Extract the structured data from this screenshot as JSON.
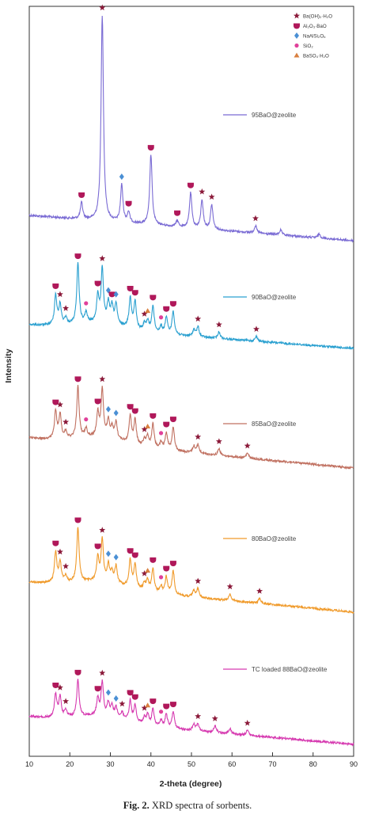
{
  "chart_data": {
    "type": "line",
    "title": "",
    "xlabel": "2-theta (degree)",
    "ylabel": "Intensity",
    "xlim": [
      10,
      90
    ],
    "xticks": [
      10,
      20,
      30,
      40,
      50,
      60,
      70,
      80,
      90
    ],
    "yticks_shown": false,
    "grid": false,
    "legend_position": "top-right",
    "legend": [
      {
        "label": "Ba(OH)₂·H₂O",
        "marker": "star",
        "color": "#8b1a3a"
      },
      {
        "label": "Al₂O₃·BaO",
        "marker": "shield",
        "color": "#b0185a"
      },
      {
        "label": "NaAlSi₂O₆",
        "marker": "diamond",
        "color": "#4a8fd4"
      },
      {
        "label": "SiO₂",
        "marker": "dot",
        "color": "#e0409a"
      },
      {
        "label": "BaSO₄·H₂O",
        "marker": "triangle",
        "color": "#d98040"
      }
    ],
    "series": [
      {
        "name": "95BaO@zeolite",
        "color": "#7a6bd4",
        "peaks": [
          [
            22.9,
            0.04
          ],
          [
            28.0,
            0.5
          ],
          [
            32.8,
            0.09
          ],
          [
            34.5,
            0.025
          ],
          [
            40.0,
            0.17
          ],
          [
            46.5,
            0.015
          ],
          [
            49.8,
            0.085
          ],
          [
            52.6,
            0.07
          ],
          [
            55.0,
            0.06
          ],
          [
            65.8,
            0.018
          ],
          [
            72.0,
            0.012
          ],
          [
            81.5,
            0.01
          ]
        ],
        "markers": [
          {
            "x": 28.0,
            "type": "star"
          },
          {
            "x": 22.9,
            "type": "shield"
          },
          {
            "x": 32.8,
            "type": "diamond"
          },
          {
            "x": 34.5,
            "type": "shield"
          },
          {
            "x": 40.0,
            "type": "shield"
          },
          {
            "x": 46.5,
            "type": "shield"
          },
          {
            "x": 49.8,
            "type": "shield"
          },
          {
            "x": 52.6,
            "type": "star"
          },
          {
            "x": 55.0,
            "type": "star"
          },
          {
            "x": 65.8,
            "type": "star"
          }
        ]
      },
      {
        "name": "90BaO@zeolite",
        "color": "#2aa0d0",
        "peaks": [
          [
            16.5,
            0.09
          ],
          [
            17.6,
            0.06
          ],
          [
            19.0,
            0.02
          ],
          [
            22.0,
            0.18
          ],
          [
            24.0,
            0.03
          ],
          [
            26.9,
            0.08
          ],
          [
            28.0,
            0.16
          ],
          [
            29.5,
            0.06
          ],
          [
            30.4,
            0.05
          ],
          [
            31.4,
            0.06
          ],
          [
            34.9,
            0.09
          ],
          [
            36.1,
            0.08
          ],
          [
            38.4,
            0.02
          ],
          [
            39.2,
            0.03
          ],
          [
            40.5,
            0.08
          ],
          [
            42.5,
            0.02
          ],
          [
            43.8,
            0.05
          ],
          [
            45.5,
            0.07
          ],
          [
            50.6,
            0.02
          ],
          [
            51.6,
            0.03
          ],
          [
            56.8,
            0.02
          ],
          [
            66.0,
            0.015
          ]
        ],
        "markers": [
          {
            "x": 16.5,
            "type": "shield"
          },
          {
            "x": 17.6,
            "type": "star"
          },
          {
            "x": 19.0,
            "type": "star"
          },
          {
            "x": 22.0,
            "type": "shield"
          },
          {
            "x": 24.0,
            "type": "dot"
          },
          {
            "x": 26.9,
            "type": "shield"
          },
          {
            "x": 28.0,
            "type": "star"
          },
          {
            "x": 29.5,
            "type": "diamond"
          },
          {
            "x": 30.4,
            "type": "shield"
          },
          {
            "x": 31.4,
            "type": "diamond"
          },
          {
            "x": 34.9,
            "type": "shield"
          },
          {
            "x": 36.1,
            "type": "shield"
          },
          {
            "x": 38.4,
            "type": "star"
          },
          {
            "x": 39.2,
            "type": "triangle"
          },
          {
            "x": 40.5,
            "type": "shield"
          },
          {
            "x": 42.5,
            "type": "dot"
          },
          {
            "x": 43.8,
            "type": "shield"
          },
          {
            "x": 45.5,
            "type": "shield"
          },
          {
            "x": 51.6,
            "type": "star"
          },
          {
            "x": 56.8,
            "type": "star"
          },
          {
            "x": 66.0,
            "type": "star"
          }
        ]
      },
      {
        "name": "85BaO@zeolite",
        "color": "#c07060",
        "peaks": [
          [
            16.5,
            0.08
          ],
          [
            17.6,
            0.07
          ],
          [
            19.0,
            0.02
          ],
          [
            22.0,
            0.15
          ],
          [
            24.0,
            0.025
          ],
          [
            26.9,
            0.07
          ],
          [
            28.0,
            0.14
          ],
          [
            29.5,
            0.05
          ],
          [
            30.4,
            0.03
          ],
          [
            31.4,
            0.05
          ],
          [
            34.9,
            0.08
          ],
          [
            36.1,
            0.07
          ],
          [
            38.4,
            0.02
          ],
          [
            39.2,
            0.03
          ],
          [
            40.5,
            0.07
          ],
          [
            42.5,
            0.02
          ],
          [
            43.8,
            0.05
          ],
          [
            45.5,
            0.07
          ],
          [
            50.6,
            0.02
          ],
          [
            51.6,
            0.025
          ],
          [
            56.8,
            0.02
          ],
          [
            63.8,
            0.015
          ]
        ],
        "markers": [
          {
            "x": 16.5,
            "type": "shield"
          },
          {
            "x": 17.6,
            "type": "star"
          },
          {
            "x": 19.0,
            "type": "star"
          },
          {
            "x": 22.0,
            "type": "shield"
          },
          {
            "x": 24.0,
            "type": "dot"
          },
          {
            "x": 26.9,
            "type": "shield"
          },
          {
            "x": 28.0,
            "type": "star"
          },
          {
            "x": 29.5,
            "type": "diamond"
          },
          {
            "x": 31.4,
            "type": "diamond"
          },
          {
            "x": 34.9,
            "type": "shield"
          },
          {
            "x": 36.1,
            "type": "shield"
          },
          {
            "x": 38.4,
            "type": "star"
          },
          {
            "x": 39.2,
            "type": "triangle"
          },
          {
            "x": 40.5,
            "type": "shield"
          },
          {
            "x": 42.5,
            "type": "dot"
          },
          {
            "x": 43.8,
            "type": "shield"
          },
          {
            "x": 45.5,
            "type": "shield"
          },
          {
            "x": 51.6,
            "type": "star"
          },
          {
            "x": 56.8,
            "type": "star"
          },
          {
            "x": 63.8,
            "type": "star"
          }
        ]
      },
      {
        "name": "80BaO@zeolite",
        "color": "#f09a2a",
        "peaks": [
          [
            16.5,
            0.09
          ],
          [
            17.6,
            0.06
          ],
          [
            19.0,
            0.02
          ],
          [
            22.0,
            0.16
          ],
          [
            26.9,
            0.07
          ],
          [
            28.0,
            0.12
          ],
          [
            29.5,
            0.05
          ],
          [
            30.4,
            0.03
          ],
          [
            31.4,
            0.05
          ],
          [
            34.9,
            0.08
          ],
          [
            36.1,
            0.07
          ],
          [
            38.4,
            0.02
          ],
          [
            39.2,
            0.03
          ],
          [
            40.5,
            0.07
          ],
          [
            42.5,
            0.02
          ],
          [
            43.8,
            0.05
          ],
          [
            45.5,
            0.07
          ],
          [
            50.6,
            0.02
          ],
          [
            51.6,
            0.025
          ],
          [
            59.5,
            0.02
          ],
          [
            66.8,
            0.015
          ]
        ],
        "markers": [
          {
            "x": 16.5,
            "type": "shield"
          },
          {
            "x": 17.6,
            "type": "star"
          },
          {
            "x": 19.0,
            "type": "star"
          },
          {
            "x": 22.0,
            "type": "shield"
          },
          {
            "x": 26.9,
            "type": "shield"
          },
          {
            "x": 28.0,
            "type": "star"
          },
          {
            "x": 29.5,
            "type": "diamond"
          },
          {
            "x": 31.4,
            "type": "diamond"
          },
          {
            "x": 34.9,
            "type": "shield"
          },
          {
            "x": 36.1,
            "type": "shield"
          },
          {
            "x": 38.4,
            "type": "star"
          },
          {
            "x": 39.2,
            "type": "triangle"
          },
          {
            "x": 40.5,
            "type": "shield"
          },
          {
            "x": 42.5,
            "type": "dot"
          },
          {
            "x": 43.8,
            "type": "shield"
          },
          {
            "x": 45.5,
            "type": "shield"
          },
          {
            "x": 51.6,
            "type": "star"
          },
          {
            "x": 59.5,
            "type": "star"
          },
          {
            "x": 66.8,
            "type": "star"
          }
        ]
      },
      {
        "name": "TC loaded 88BaO@zeolite",
        "color": "#d63ab0",
        "peaks": [
          [
            16.5,
            0.07
          ],
          [
            17.6,
            0.06
          ],
          [
            19.0,
            0.02
          ],
          [
            22.0,
            0.11
          ],
          [
            26.9,
            0.05
          ],
          [
            28.0,
            0.1
          ],
          [
            29.5,
            0.04
          ],
          [
            30.4,
            0.03
          ],
          [
            31.4,
            0.03
          ],
          [
            32.9,
            0.02
          ],
          [
            34.9,
            0.06
          ],
          [
            36.1,
            0.05
          ],
          [
            38.4,
            0.02
          ],
          [
            39.2,
            0.03
          ],
          [
            40.5,
            0.05
          ],
          [
            42.5,
            0.02
          ],
          [
            43.8,
            0.04
          ],
          [
            45.5,
            0.05
          ],
          [
            50.6,
            0.02
          ],
          [
            51.6,
            0.02
          ],
          [
            55.8,
            0.02
          ],
          [
            59.5,
            0.015
          ],
          [
            63.8,
            0.015
          ]
        ],
        "markers": [
          {
            "x": 16.5,
            "type": "shield"
          },
          {
            "x": 17.6,
            "type": "star"
          },
          {
            "x": 19.0,
            "type": "star"
          },
          {
            "x": 22.0,
            "type": "shield"
          },
          {
            "x": 26.9,
            "type": "shield"
          },
          {
            "x": 28.0,
            "type": "star"
          },
          {
            "x": 29.5,
            "type": "diamond"
          },
          {
            "x": 31.4,
            "type": "diamond"
          },
          {
            "x": 32.9,
            "type": "star"
          },
          {
            "x": 34.9,
            "type": "shield"
          },
          {
            "x": 36.1,
            "type": "shield"
          },
          {
            "x": 38.4,
            "type": "star"
          },
          {
            "x": 39.2,
            "type": "triangle"
          },
          {
            "x": 40.5,
            "type": "shield"
          },
          {
            "x": 42.5,
            "type": "dot"
          },
          {
            "x": 43.8,
            "type": "shield"
          },
          {
            "x": 45.5,
            "type": "shield"
          },
          {
            "x": 51.6,
            "type": "star"
          },
          {
            "x": 55.8,
            "type": "star"
          },
          {
            "x": 63.8,
            "type": "star"
          }
        ]
      }
    ]
  },
  "caption": {
    "label": "Fig. 2.",
    "text": "XRD spectra of sorbents."
  }
}
